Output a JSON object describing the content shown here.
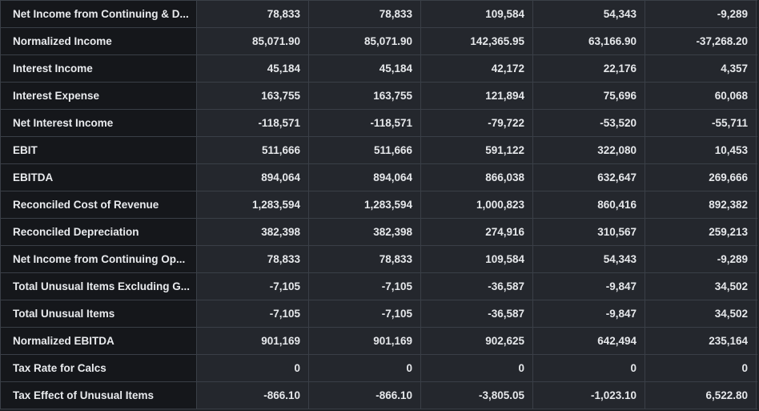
{
  "table": {
    "rows": [
      {
        "label": "Net Income from Continuing & D...",
        "values": [
          "78,833",
          "78,833",
          "109,584",
          "54,343",
          "-9,289"
        ]
      },
      {
        "label": "Normalized Income",
        "values": [
          "85,071.90",
          "85,071.90",
          "142,365.95",
          "63,166.90",
          "-37,268.20"
        ]
      },
      {
        "label": "Interest Income",
        "values": [
          "45,184",
          "45,184",
          "42,172",
          "22,176",
          "4,357"
        ]
      },
      {
        "label": "Interest Expense",
        "values": [
          "163,755",
          "163,755",
          "121,894",
          "75,696",
          "60,068"
        ]
      },
      {
        "label": "Net Interest Income",
        "values": [
          "-118,571",
          "-118,571",
          "-79,722",
          "-53,520",
          "-55,711"
        ]
      },
      {
        "label": "EBIT",
        "values": [
          "511,666",
          "511,666",
          "591,122",
          "322,080",
          "10,453"
        ]
      },
      {
        "label": "EBITDA",
        "values": [
          "894,064",
          "894,064",
          "866,038",
          "632,647",
          "269,666"
        ]
      },
      {
        "label": "Reconciled Cost of Revenue",
        "values": [
          "1,283,594",
          "1,283,594",
          "1,000,823",
          "860,416",
          "892,382"
        ]
      },
      {
        "label": "Reconciled Depreciation",
        "values": [
          "382,398",
          "382,398",
          "274,916",
          "310,567",
          "259,213"
        ]
      },
      {
        "label": "Net Income from Continuing Op...",
        "values": [
          "78,833",
          "78,833",
          "109,584",
          "54,343",
          "-9,289"
        ]
      },
      {
        "label": "Total Unusual Items Excluding G...",
        "values": [
          "-7,105",
          "-7,105",
          "-36,587",
          "-9,847",
          "34,502"
        ]
      },
      {
        "label": "Total Unusual Items",
        "values": [
          "-7,105",
          "-7,105",
          "-36,587",
          "-9,847",
          "34,502"
        ]
      },
      {
        "label": "Normalized EBITDA",
        "values": [
          "901,169",
          "901,169",
          "902,625",
          "642,494",
          "235,164"
        ]
      },
      {
        "label": "Tax Rate for Calcs",
        "values": [
          "0",
          "0",
          "0",
          "0",
          "0"
        ]
      },
      {
        "label": "Tax Effect of Unusual Items",
        "values": [
          "-866.10",
          "-866.10",
          "-3,805.05",
          "-1,023.10",
          "6,522.80"
        ]
      }
    ]
  }
}
